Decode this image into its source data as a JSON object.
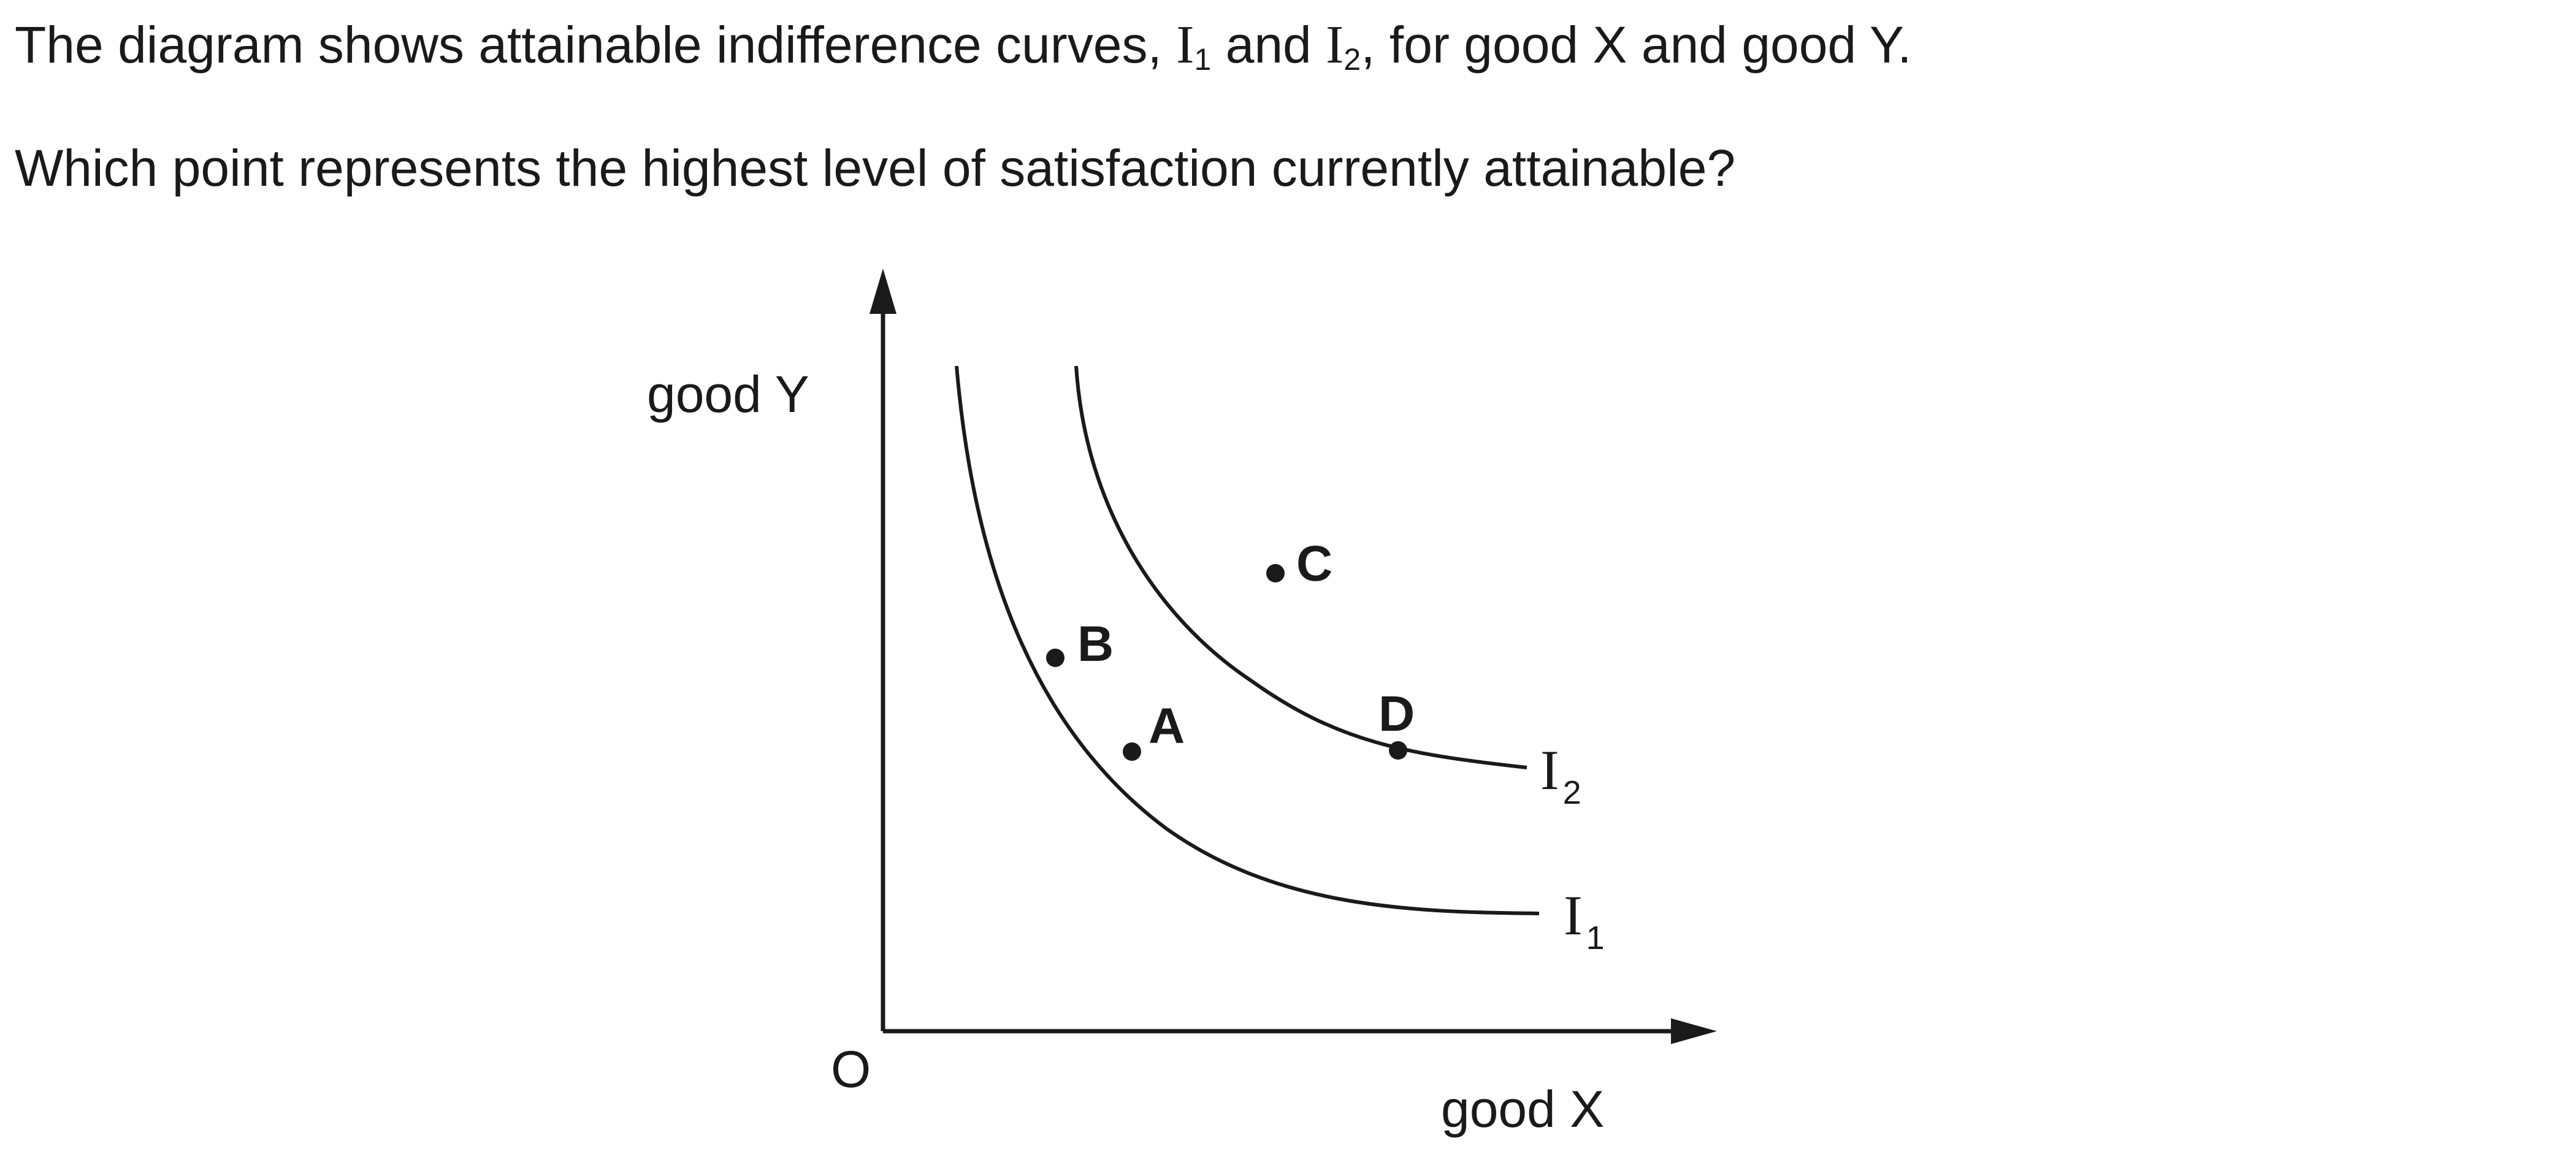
{
  "question": {
    "line1": {
      "before": "The diagram shows attainable indifference curves, ",
      "curve1_letter": "I",
      "curve1_sub": "1",
      "middle": " and ",
      "curve2_letter": "I",
      "curve2_sub": "2",
      "after": ", for good X and good Y."
    },
    "line2": "Which point represents the highest level of satisfaction currently attainable?"
  },
  "diagram": {
    "y_axis_label": "good Y",
    "x_axis_label": "good X",
    "origin_label": "O",
    "curves": [
      {
        "letter": "I",
        "sub": "1"
      },
      {
        "letter": "I",
        "sub": "2"
      }
    ],
    "points": [
      "A",
      "B",
      "C",
      "D"
    ],
    "colors": {
      "ink": "#1a1a1a",
      "background": "#ffffff"
    }
  }
}
